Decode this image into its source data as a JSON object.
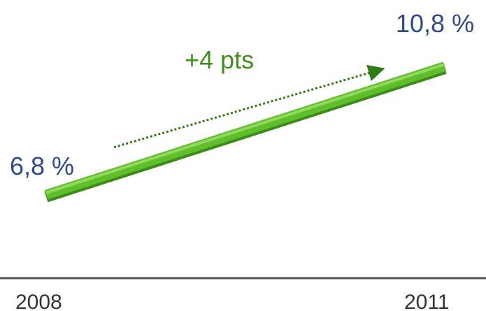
{
  "colors": {
    "line": "#5fbf2a",
    "line_highlight": "#9ee06a",
    "line_shadow": "#3c8a18",
    "value_text": "#2e4a8f",
    "delta_text": "#3f8f1f",
    "arrow": "#2f7d12",
    "axis": "#555555"
  },
  "chart_data": {
    "type": "line",
    "title": "",
    "xlabel": "",
    "ylabel": "",
    "x": [
      "2008",
      "2011"
    ],
    "series": [
      {
        "values": [
          6.8,
          10.8
        ]
      }
    ],
    "data_labels": [
      "6,8 %",
      "10,8 %"
    ],
    "annotation": "+4 pts",
    "ylim": [
      4.2,
      12
    ],
    "grid": false,
    "legend": "none"
  }
}
